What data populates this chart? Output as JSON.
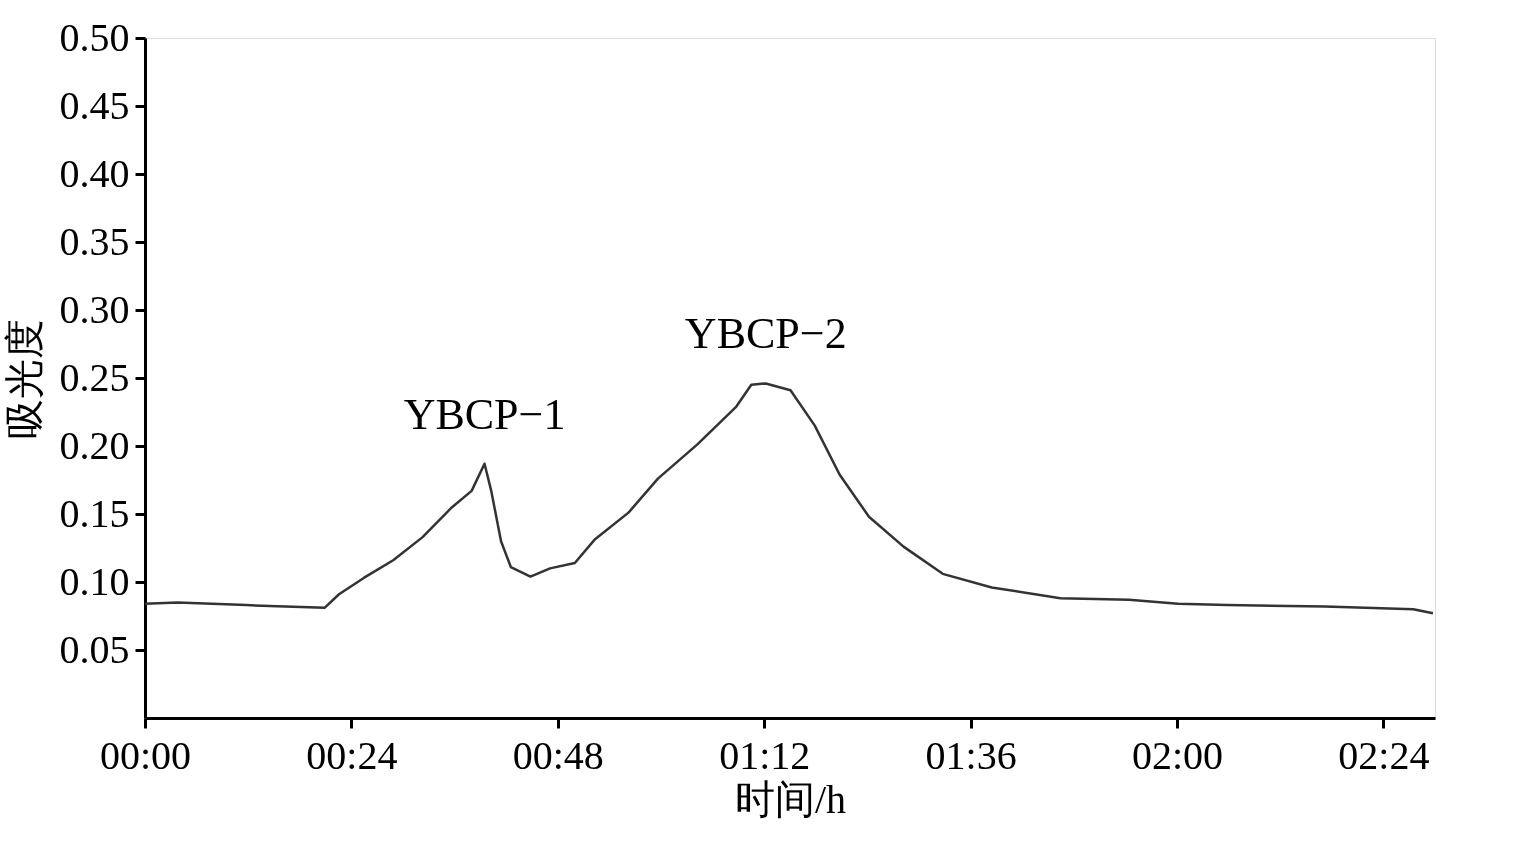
{
  "chart_data": {
    "type": "line",
    "xlabel": "时间/h",
    "ylabel": "吸光度",
    "x": [
      0,
      0.063,
      0.196,
      0.348,
      0.376,
      0.424,
      0.481,
      0.538,
      0.595,
      0.633,
      0.658,
      0.671,
      0.69,
      0.709,
      0.747,
      0.785,
      0.833,
      0.871,
      0.937,
      0.994,
      1.07,
      1.146,
      1.175,
      1.203,
      1.251,
      1.298,
      1.346,
      1.403,
      1.47,
      1.546,
      1.641,
      1.774,
      1.907,
      2.002,
      2.097,
      2.287,
      2.458,
      2.496
    ],
    "series": [
      {
        "color": "#333333",
        "values": [
          0.084,
          0.085,
          0.083,
          0.081,
          0.091,
          0.103,
          0.116,
          0.133,
          0.155,
          0.167,
          0.187,
          0.167,
          0.13,
          0.111,
          0.104,
          0.11,
          0.114,
          0.131,
          0.151,
          0.176,
          0.201,
          0.229,
          0.245,
          0.246,
          0.241,
          0.215,
          0.179,
          0.148,
          0.126,
          0.106,
          0.096,
          0.088,
          0.087,
          0.084,
          0.083,
          0.082,
          0.08,
          0.077
        ]
      }
    ],
    "xlim": [
      0,
      2.5
    ],
    "xticks": [
      {
        "value": 0,
        "label": "00:00"
      },
      {
        "value": 0.4,
        "label": "00:24"
      },
      {
        "value": 0.8,
        "label": "00:48"
      },
      {
        "value": 1.2,
        "label": "01:12"
      },
      {
        "value": 1.6,
        "label": "01:36"
      },
      {
        "value": 2.0,
        "label": "02:00"
      },
      {
        "value": 2.4,
        "label": "02:24"
      }
    ],
    "ylim": [
      0,
      0.5
    ],
    "yticks": [
      {
        "value": 0.05,
        "label": "0.05"
      },
      {
        "value": 0.1,
        "label": "0.10"
      },
      {
        "value": 0.15,
        "label": "0.15"
      },
      {
        "value": 0.2,
        "label": "0.20"
      },
      {
        "value": 0.25,
        "label": "0.25"
      },
      {
        "value": 0.3,
        "label": "0.30"
      },
      {
        "value": 0.35,
        "label": "0.35"
      },
      {
        "value": 0.4,
        "label": "0.40"
      },
      {
        "value": 0.45,
        "label": "0.45"
      },
      {
        "value": 0.5,
        "label": "0.50"
      }
    ],
    "annotations": [
      {
        "text": "YBCP−1",
        "x": 0.658,
        "y": 0.187
      },
      {
        "text": "YBCP−2",
        "x": 1.203,
        "y": 0.246
      }
    ],
    "grid": false,
    "marker": "none",
    "line_style": "solid"
  }
}
